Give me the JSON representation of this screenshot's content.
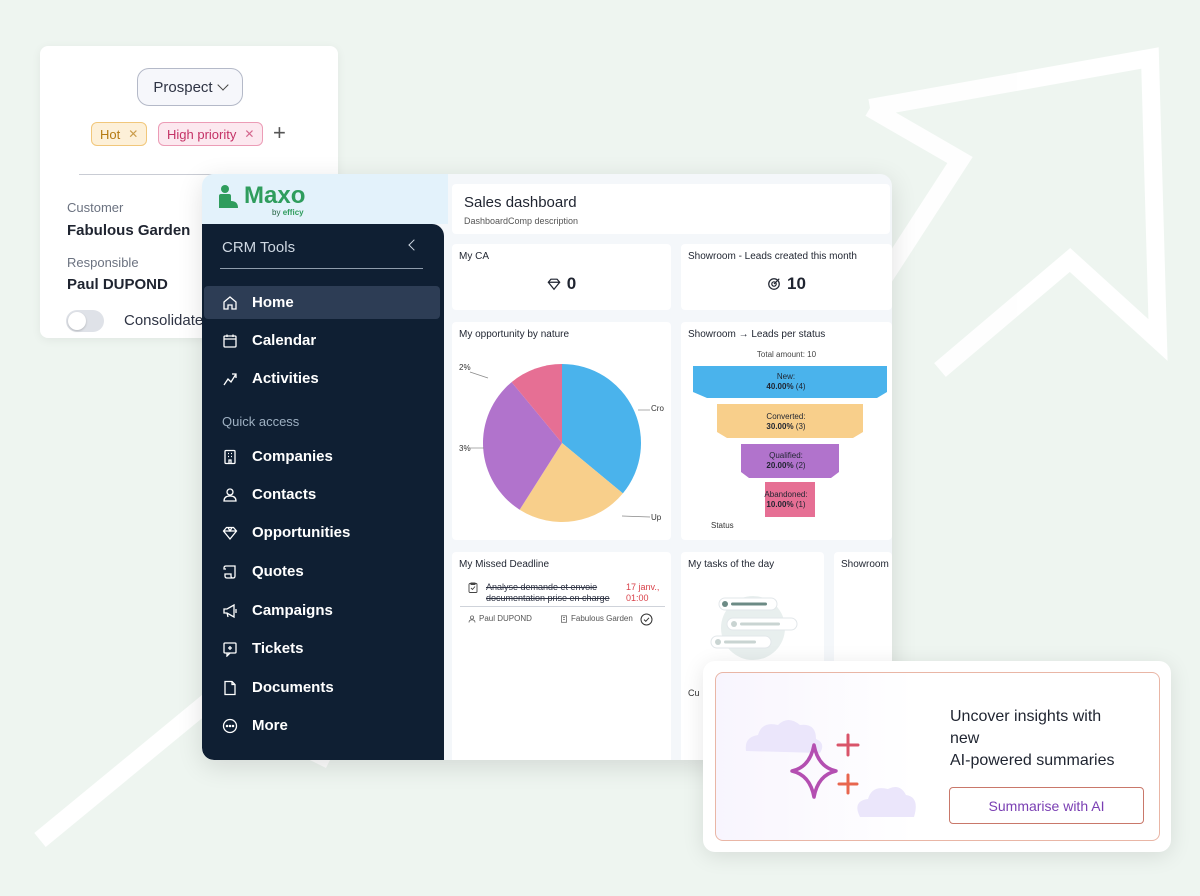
{
  "customer_card": {
    "status_button": "Prospect",
    "tags": [
      {
        "label": "Hot",
        "color": "#b57a12"
      },
      {
        "label": "High priority",
        "color": "#c43266"
      }
    ],
    "customer_label": "Customer",
    "customer_value": "Fabulous Garden",
    "responsible_label": "Responsible",
    "responsible_value": "Paul DUPOND",
    "consolidated_label": "Consolidate"
  },
  "app": {
    "logo": {
      "name": "Maxo",
      "by": "by",
      "brand": "efficy"
    },
    "sidebar": {
      "title": "CRM Tools",
      "items": [
        {
          "label": "Home",
          "icon": "home-icon",
          "active": true
        },
        {
          "label": "Calendar",
          "icon": "calendar-icon"
        },
        {
          "label": "Activities",
          "icon": "activities-icon"
        }
      ],
      "quick_access_label": "Quick access",
      "quick_items": [
        {
          "label": "Companies",
          "icon": "building-icon"
        },
        {
          "label": "Contacts",
          "icon": "user-icon"
        },
        {
          "label": "Opportunities",
          "icon": "diamond-icon"
        },
        {
          "label": "Quotes",
          "icon": "scroll-icon"
        },
        {
          "label": "Campaigns",
          "icon": "megaphone-icon"
        },
        {
          "label": "Tickets",
          "icon": "ticket-icon"
        },
        {
          "label": "Documents",
          "icon": "document-icon"
        },
        {
          "label": "More",
          "icon": "more-icon"
        }
      ]
    },
    "header": {
      "title": "Sales dashboard",
      "description": "DashboardComp description"
    },
    "widgets": {
      "my_ca": {
        "title": "My CA",
        "value": "0"
      },
      "leads_month": {
        "title": "Showroom - Leads created this month",
        "value": "10"
      },
      "opportunity": {
        "title": "My opportunity by nature",
        "label_a": "2%",
        "label_b": "3%",
        "label_c": "Cro",
        "label_d": "Up"
      },
      "leads_status": {
        "title": "Showroom → Leads per status",
        "total": "Total amount: 10",
        "axis_label": "Status",
        "segments": [
          {
            "name": "New:",
            "pct": "40.00%",
            "count": "(4)",
            "color": "#4ab3ec"
          },
          {
            "name": "Converted:",
            "pct": "30.00%",
            "count": "(3)",
            "color": "#f8cf8b"
          },
          {
            "name": "Qualified:",
            "pct": "20.00%",
            "count": "(2)",
            "color": "#b173cc"
          },
          {
            "name": "Abandoned:",
            "pct": "10.00%",
            "count": "(1)",
            "color": "#e66f94"
          }
        ]
      },
      "missed_deadline": {
        "title": "My Missed Deadline",
        "item_title": "Analyse demande et envoie documentation prise en charge",
        "item_date": "17 janv., 01:00",
        "item_user": "Paul DUPOND",
        "item_company": "Fabulous Garden"
      },
      "tasks": {
        "title": "My tasks of the day",
        "partial_text": "Cu"
      },
      "showroom": {
        "title": "Showroom"
      }
    }
  },
  "ai_card": {
    "text_line1": "Uncover insights with",
    "text_line2": "new",
    "text_line3": "AI-powered summaries",
    "button": "Summarise with AI"
  },
  "chart_data": {
    "type": "pie",
    "title": "My opportunity by nature",
    "slices": [
      {
        "label": "Cro",
        "value": 36,
        "color": "#4ab3ec"
      },
      {
        "label": "Up",
        "value": 23,
        "color": "#f8cf8b"
      },
      {
        "label": "3%",
        "value": 30,
        "color": "#b173cc"
      },
      {
        "label": "2%",
        "value": 11,
        "color": "#e66f94"
      }
    ]
  }
}
